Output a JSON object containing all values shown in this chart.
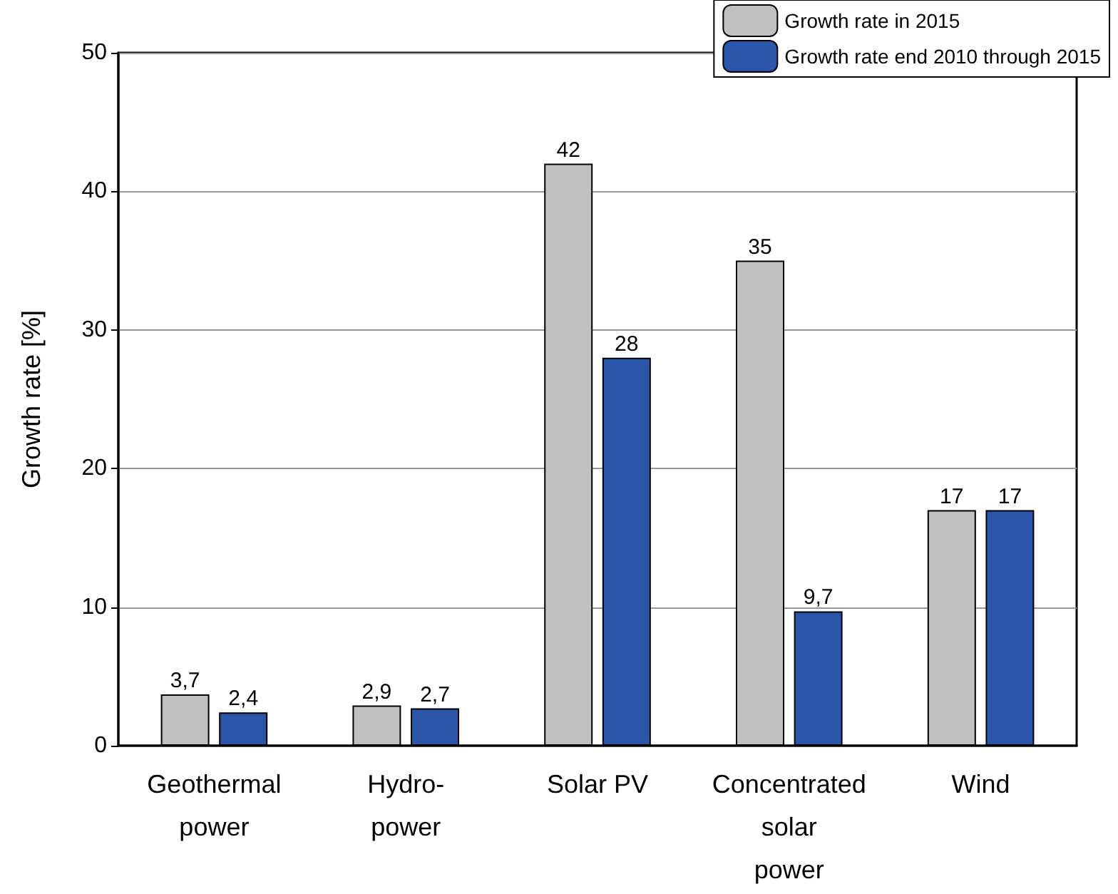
{
  "chart_data": {
    "type": "bar",
    "ylabel": "Growth rate [%]",
    "categories": [
      "Geothermal\npower",
      "Hydro-\npower",
      "Solar PV",
      "Concentrated\nsolar\npower",
      "Wind"
    ],
    "series": [
      {
        "name": "Growth rate in 2015",
        "color": "#c0c0c0",
        "values": [
          3.7,
          2.9,
          42,
          35,
          17
        ],
        "value_labels": [
          "3,7",
          "2,9",
          "42",
          "35",
          "17"
        ]
      },
      {
        "name": "Growth rate end 2010 through 2015",
        "color": "#2b55a8",
        "values": [
          2.4,
          2.7,
          28,
          9.7,
          17
        ],
        "value_labels": [
          "2,4",
          "2,7",
          "28",
          "9,7",
          "17"
        ]
      }
    ],
    "ylim": [
      0,
      50
    ],
    "yticks": [
      0,
      10,
      20,
      30,
      40,
      50
    ],
    "grid": "y",
    "legend": "top right"
  }
}
